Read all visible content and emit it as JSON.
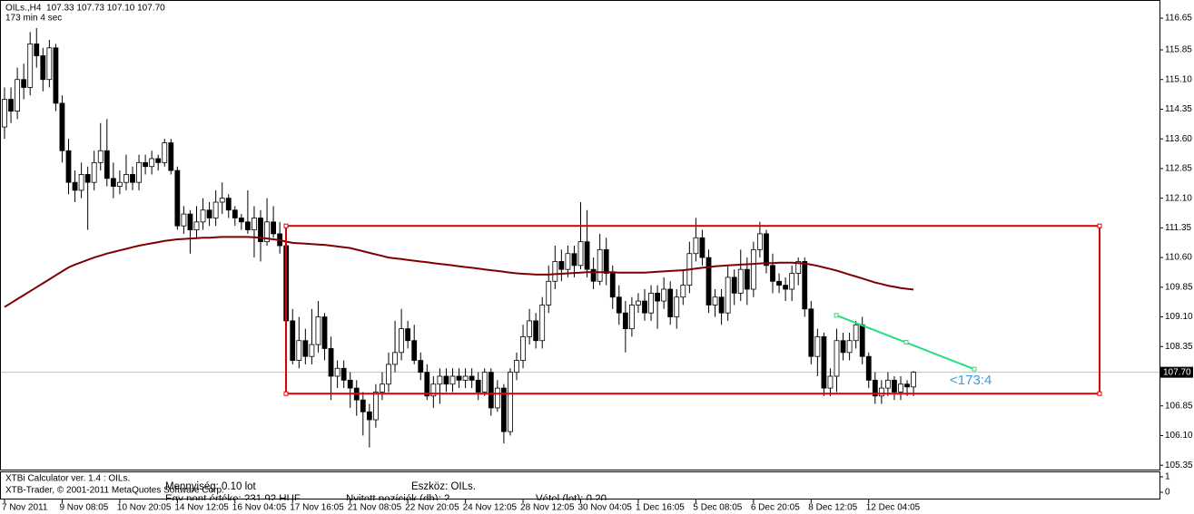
{
  "chart_data": {
    "type": "candlestick",
    "header": "OILs.,H4  107.33 107.73 107.10 107.70",
    "timer": "173 min 4 sec",
    "up_color": "#ffffff",
    "down_color": "#000000",
    "ylim": [
      105.24,
      117.11
    ],
    "yticks": [
      {
        "value": 116.65,
        "label": "116.65"
      },
      {
        "value": 115.85,
        "label": "115.85"
      },
      {
        "value": 115.1,
        "label": "115.10"
      },
      {
        "value": 114.35,
        "label": "114.35"
      },
      {
        "value": 113.6,
        "label": "113.60"
      },
      {
        "value": 112.85,
        "label": "112.85"
      },
      {
        "value": 112.1,
        "label": "112.10"
      },
      {
        "value": 111.35,
        "label": "111.35"
      },
      {
        "value": 110.6,
        "label": "110.60"
      },
      {
        "value": 109.85,
        "label": "109.85"
      },
      {
        "value": 109.1,
        "label": "109.10"
      },
      {
        "value": 108.35,
        "label": "108.35"
      },
      {
        "value": 106.85,
        "label": "106.85"
      },
      {
        "value": 106.1,
        "label": "106.10"
      },
      {
        "value": 105.35,
        "label": "105.35"
      }
    ],
    "current_price": {
      "value": 107.7,
      "label": "107.70"
    },
    "categories": [
      "7 Nov 2011",
      null,
      null,
      null,
      null,
      null,
      null,
      null,
      null,
      "9 Nov 08:05",
      null,
      null,
      null,
      null,
      null,
      null,
      null,
      null,
      "10 Nov 20:05",
      null,
      null,
      null,
      null,
      null,
      null,
      null,
      null,
      "14 Nov 12:05",
      null,
      null,
      null,
      null,
      null,
      null,
      null,
      null,
      "16 Nov 04:05",
      null,
      null,
      null,
      null,
      null,
      null,
      null,
      null,
      "17 Nov 16:05",
      null,
      null,
      null,
      null,
      null,
      null,
      null,
      null,
      "21 Nov 08:05",
      null,
      null,
      null,
      null,
      null,
      null,
      null,
      null,
      "22 Nov 20:05",
      null,
      null,
      null,
      null,
      null,
      null,
      null,
      null,
      "24 Nov 12:05",
      null,
      null,
      null,
      null,
      null,
      null,
      null,
      null,
      "28 Nov 12:05",
      null,
      null,
      null,
      null,
      null,
      null,
      null,
      null,
      "30 Nov 04:05",
      null,
      null,
      null,
      null,
      null,
      null,
      null,
      null,
      "1 Dec 16:05",
      null,
      null,
      null,
      null,
      null,
      null,
      null,
      null,
      "5 Dec 08:05",
      null,
      null,
      null,
      null,
      null,
      null,
      null,
      null,
      "6 Dec 20:05",
      null,
      null,
      null,
      null,
      null,
      null,
      null,
      null,
      "8 Dec 12:05",
      null,
      null,
      null,
      null,
      null,
      null,
      null,
      null,
      "12 Dec 04:05",
      null,
      null,
      null,
      null,
      null,
      null,
      null
    ],
    "ohlc": [
      [
        113.9,
        114.9,
        113.6,
        114.6
      ],
      [
        114.6,
        114.9,
        114.0,
        114.3
      ],
      [
        114.3,
        115.4,
        114.1,
        115.1
      ],
      [
        115.1,
        115.5,
        114.6,
        114.9
      ],
      [
        114.9,
        116.3,
        114.7,
        116.0
      ],
      [
        116.0,
        116.4,
        115.4,
        115.7
      ],
      [
        115.7,
        115.9,
        114.8,
        115.1
      ],
      [
        115.1,
        116.1,
        114.9,
        115.9
      ],
      [
        115.9,
        116.0,
        114.3,
        114.5
      ],
      [
        114.5,
        114.7,
        113.0,
        113.3
      ],
      [
        113.3,
        113.6,
        112.2,
        112.5
      ],
      [
        112.5,
        112.8,
        112.0,
        112.3
      ],
      [
        112.3,
        113.0,
        112.1,
        112.7
      ],
      [
        112.7,
        112.9,
        111.3,
        112.5
      ],
      [
        112.5,
        113.3,
        112.3,
        113.0
      ],
      [
        113.0,
        114.0,
        112.8,
        113.3
      ],
      [
        113.3,
        114.1,
        112.4,
        112.6
      ],
      [
        112.6,
        113.0,
        112.1,
        112.4
      ],
      [
        112.4,
        112.8,
        112.2,
        112.5
      ],
      [
        112.5,
        113.2,
        112.3,
        112.7
      ],
      [
        112.7,
        112.9,
        112.3,
        112.5
      ],
      [
        112.5,
        113.2,
        112.3,
        113.0
      ],
      [
        113.0,
        113.2,
        112.7,
        112.9
      ],
      [
        112.9,
        113.3,
        112.7,
        113.1
      ],
      [
        113.1,
        113.2,
        112.8,
        113.0
      ],
      [
        113.0,
        113.6,
        112.9,
        113.5
      ],
      [
        113.5,
        113.6,
        112.7,
        112.8
      ],
      [
        112.8,
        112.9,
        111.3,
        111.4
      ],
      [
        111.4,
        111.9,
        111.2,
        111.7
      ],
      [
        111.7,
        111.8,
        110.7,
        111.3
      ],
      [
        111.3,
        111.9,
        111.1,
        111.5
      ],
      [
        111.5,
        112.1,
        111.3,
        111.8
      ],
      [
        111.8,
        112.0,
        111.4,
        111.6
      ],
      [
        111.6,
        112.3,
        111.4,
        112.0
      ],
      [
        112.0,
        112.5,
        111.7,
        112.1
      ],
      [
        112.1,
        112.2,
        111.6,
        111.8
      ],
      [
        111.8,
        111.9,
        111.4,
        111.6
      ],
      [
        111.6,
        111.7,
        111.3,
        111.5
      ],
      [
        111.5,
        112.3,
        111.2,
        111.3
      ],
      [
        111.3,
        111.9,
        110.6,
        111.6
      ],
      [
        111.6,
        111.8,
        110.5,
        111.0
      ],
      [
        111.0,
        112.1,
        110.9,
        111.5
      ],
      [
        111.5,
        111.9,
        111.1,
        111.2
      ],
      [
        111.2,
        111.5,
        110.7,
        110.9
      ],
      [
        110.9,
        111.1,
        108.9,
        109.0
      ],
      [
        109.0,
        109.3,
        107.9,
        108.0
      ],
      [
        108.0,
        109.1,
        107.8,
        108.5
      ],
      [
        108.5,
        108.8,
        107.9,
        108.1
      ],
      [
        108.1,
        109.3,
        107.9,
        108.4
      ],
      [
        108.4,
        109.5,
        108.2,
        109.1
      ],
      [
        109.1,
        109.2,
        108.0,
        108.3
      ],
      [
        108.3,
        108.6,
        107.0,
        107.6
      ],
      [
        107.6,
        108.0,
        107.3,
        107.8
      ],
      [
        107.8,
        108.0,
        107.3,
        107.5
      ],
      [
        107.5,
        107.7,
        106.8,
        107.3
      ],
      [
        107.3,
        107.5,
        106.6,
        107.0
      ],
      [
        107.0,
        107.2,
        106.1,
        106.7
      ],
      [
        106.7,
        106.9,
        105.8,
        106.5
      ],
      [
        106.5,
        107.4,
        106.3,
        107.2
      ],
      [
        107.2,
        107.7,
        107.0,
        107.4
      ],
      [
        107.4,
        108.2,
        107.2,
        107.9
      ],
      [
        107.9,
        109.0,
        107.7,
        108.2
      ],
      [
        108.2,
        109.3,
        108.0,
        108.8
      ],
      [
        108.8,
        109.0,
        108.3,
        108.5
      ],
      [
        108.5,
        108.9,
        107.9,
        108.0
      ],
      [
        108.0,
        108.2,
        107.5,
        107.7
      ],
      [
        107.7,
        107.9,
        107.0,
        107.1
      ],
      [
        107.1,
        107.6,
        106.8,
        107.4
      ],
      [
        107.4,
        107.8,
        106.9,
        107.6
      ],
      [
        107.6,
        107.8,
        107.2,
        107.4
      ],
      [
        107.4,
        107.8,
        107.2,
        107.6
      ],
      [
        107.6,
        107.8,
        107.3,
        107.5
      ],
      [
        107.5,
        107.8,
        107.3,
        107.6
      ],
      [
        107.6,
        107.8,
        107.3,
        107.5
      ],
      [
        107.5,
        107.7,
        107.0,
        107.2
      ],
      [
        107.2,
        107.8,
        107.1,
        107.7
      ],
      [
        107.7,
        107.8,
        106.6,
        106.8
      ],
      [
        106.8,
        107.5,
        106.7,
        107.3
      ],
      [
        107.3,
        107.4,
        105.9,
        106.2
      ],
      [
        106.2,
        107.8,
        106.1,
        107.7
      ],
      [
        107.7,
        108.2,
        107.5,
        108.0
      ],
      [
        108.0,
        108.9,
        107.8,
        108.6
      ],
      [
        108.6,
        109.3,
        108.4,
        109.0
      ],
      [
        109.0,
        109.2,
        108.3,
        108.5
      ],
      [
        108.5,
        109.6,
        108.3,
        109.4
      ],
      [
        109.4,
        110.4,
        109.2,
        110.0
      ],
      [
        110.0,
        110.9,
        109.8,
        110.5
      ],
      [
        110.5,
        110.8,
        110.0,
        110.3
      ],
      [
        110.3,
        110.9,
        110.1,
        110.7
      ],
      [
        110.7,
        110.9,
        110.1,
        110.4
      ],
      [
        110.4,
        112.0,
        110.3,
        111.0
      ],
      [
        111.0,
        111.8,
        110.1,
        110.3
      ],
      [
        110.3,
        110.6,
        109.8,
        110.0
      ],
      [
        110.0,
        111.2,
        109.9,
        110.8
      ],
      [
        110.8,
        111.1,
        109.9,
        110.2
      ],
      [
        110.2,
        110.4,
        109.3,
        109.6
      ],
      [
        109.6,
        109.9,
        108.9,
        109.2
      ],
      [
        109.2,
        109.5,
        108.2,
        108.8
      ],
      [
        108.8,
        109.6,
        108.6,
        109.4
      ],
      [
        109.4,
        109.7,
        109.2,
        109.5
      ],
      [
        109.5,
        109.8,
        109.0,
        109.2
      ],
      [
        109.2,
        109.9,
        109.0,
        109.7
      ],
      [
        109.7,
        109.9,
        108.8,
        109.5
      ],
      [
        109.5,
        110.1,
        109.3,
        109.8
      ],
      [
        109.8,
        110.0,
        108.9,
        109.1
      ],
      [
        109.1,
        109.8,
        108.8,
        109.6
      ],
      [
        109.6,
        110.3,
        109.4,
        109.9
      ],
      [
        109.9,
        111.0,
        109.7,
        110.7
      ],
      [
        110.7,
        111.6,
        110.5,
        111.1
      ],
      [
        111.1,
        111.3,
        110.4,
        110.6
      ],
      [
        110.6,
        110.8,
        109.2,
        109.4
      ],
      [
        109.4,
        109.8,
        109.1,
        109.6
      ],
      [
        109.6,
        109.8,
        108.9,
        109.2
      ],
      [
        109.2,
        110.4,
        109.0,
        110.1
      ],
      [
        110.1,
        110.3,
        109.4,
        109.7
      ],
      [
        109.7,
        110.8,
        109.5,
        110.3
      ],
      [
        110.3,
        110.6,
        109.4,
        109.8
      ],
      [
        109.8,
        111.0,
        109.6,
        110.8
      ],
      [
        110.8,
        111.5,
        110.6,
        111.2
      ],
      [
        111.2,
        111.3,
        110.2,
        110.4
      ],
      [
        110.4,
        110.7,
        109.7,
        110.0
      ],
      [
        110.0,
        110.2,
        109.7,
        109.9
      ],
      [
        109.9,
        110.1,
        109.5,
        109.8
      ],
      [
        109.8,
        110.4,
        109.5,
        110.2
      ],
      [
        110.2,
        110.6,
        109.9,
        110.5
      ],
      [
        110.5,
        110.6,
        109.1,
        109.3
      ],
      [
        109.3,
        109.5,
        107.9,
        108.1
      ],
      [
        108.1,
        108.8,
        107.6,
        108.6
      ],
      [
        108.6,
        108.7,
        107.1,
        107.3
      ],
      [
        107.3,
        107.8,
        107.1,
        107.6
      ],
      [
        107.6,
        108.8,
        107.2,
        108.5
      ],
      [
        108.5,
        108.7,
        108.0,
        108.2
      ],
      [
        108.2,
        108.7,
        108.0,
        108.5
      ],
      [
        108.5,
        109.0,
        108.3,
        108.9
      ],
      [
        108.9,
        109.1,
        107.9,
        108.1
      ],
      [
        108.1,
        108.2,
        107.3,
        107.5
      ],
      [
        107.5,
        107.7,
        106.9,
        107.1
      ],
      [
        107.1,
        107.5,
        106.9,
        107.3
      ],
      [
        107.3,
        107.7,
        107.1,
        107.5
      ],
      [
        107.5,
        107.6,
        107.0,
        107.2
      ],
      [
        107.2,
        107.6,
        107.0,
        107.4
      ],
      [
        107.4,
        107.5,
        107.1,
        107.33
      ],
      [
        107.33,
        107.73,
        107.1,
        107.7
      ]
    ],
    "ma": {
      "color": "#7f0000",
      "values": [
        109.35,
        109.45,
        109.55,
        109.65,
        109.75,
        109.85,
        109.95,
        110.05,
        110.15,
        110.25,
        110.35,
        110.42,
        110.48,
        110.54,
        110.6,
        110.65,
        110.7,
        110.74,
        110.78,
        110.82,
        110.86,
        110.9,
        110.93,
        110.96,
        110.99,
        111.02,
        111.04,
        111.06,
        111.07,
        111.08,
        111.09,
        111.1,
        111.1,
        111.11,
        111.12,
        111.12,
        111.12,
        111.12,
        111.12,
        111.11,
        111.1,
        111.08,
        111.06,
        111.04,
        111.0,
        110.97,
        110.96,
        110.95,
        110.94,
        110.93,
        110.92,
        110.9,
        110.88,
        110.86,
        110.84,
        110.8,
        110.76,
        110.72,
        110.68,
        110.64,
        110.6,
        110.58,
        110.56,
        110.54,
        110.52,
        110.5,
        110.48,
        110.46,
        110.44,
        110.42,
        110.4,
        110.38,
        110.36,
        110.34,
        110.32,
        110.3,
        110.28,
        110.26,
        110.24,
        110.22,
        110.2,
        110.19,
        110.18,
        110.17,
        110.17,
        110.17,
        110.18,
        110.19,
        110.2,
        110.21,
        110.22,
        110.23,
        110.23,
        110.23,
        110.23,
        110.23,
        110.22,
        110.22,
        110.22,
        110.22,
        110.22,
        110.23,
        110.24,
        110.25,
        110.26,
        110.27,
        110.28,
        110.3,
        110.32,
        110.34,
        110.36,
        110.38,
        110.39,
        110.4,
        110.41,
        110.42,
        110.43,
        110.44,
        110.45,
        110.46,
        110.46,
        110.47,
        110.47,
        110.47,
        110.46,
        110.45,
        110.42,
        110.39,
        110.35,
        110.31,
        110.27,
        110.22,
        110.17,
        110.12,
        110.07,
        110.02,
        109.97,
        109.93,
        109.89,
        109.86,
        109.83,
        109.81,
        109.79
      ]
    },
    "rectangle": {
      "color": "#e00000",
      "top": 111.4,
      "bottom": 107.16
    },
    "trendline": {
      "color": "#22e07a",
      "label_color": "#3d9be0",
      "start": 109.14,
      "end": 107.78,
      "label": "<173:4"
    },
    "indicator": {
      "title": "XTBi Calculator ver. 1.4 : OILs.",
      "copyright": "XTB-Trader, © 2001-2011 MetaQuotes Software Corp.",
      "yticks": [
        1,
        0
      ],
      "fields": [
        "Mennyiség: 0.10 lot",
        "Eszköz: OILs.",
        "Egy pont értéke: 231.92 HUF",
        "Nyitott pozíciók (db): 2",
        "Vétel (lot): 0.20"
      ]
    }
  }
}
